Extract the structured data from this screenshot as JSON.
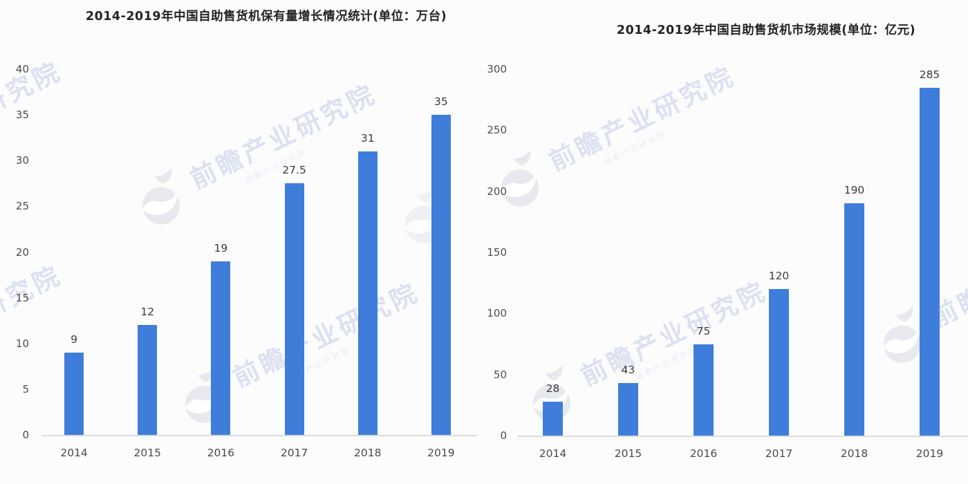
{
  "page": {
    "background": "#fcfcfd",
    "type": "infographic-two-bar-charts"
  },
  "watermark": {
    "text": "前瞻产业研究院",
    "subtext": "前瞻产业研究院",
    "text_color": "#dbe1f0",
    "logo_color": "#e7e9ee"
  },
  "chart_data": [
    {
      "type": "bar",
      "title": "2014-2019年中国自助售货机保有量增长情况统计(单位：万台)",
      "unit": "万台",
      "categories": [
        "2014",
        "2015",
        "2016",
        "2017",
        "2018",
        "2019"
      ],
      "values": [
        9,
        12,
        19,
        27.5,
        31,
        35
      ],
      "ylim": [
        0,
        40
      ],
      "yticks": [
        0,
        5,
        10,
        15,
        20,
        25,
        30,
        35,
        40
      ],
      "bar_color": "#3E7EDA",
      "grid": false,
      "legend": false,
      "data_labels": true,
      "xlabel": "",
      "ylabel": ""
    },
    {
      "type": "bar",
      "title": "2014-2019年中国自助售货机市场规模(单位：亿元)",
      "unit": "亿元",
      "categories": [
        "2014",
        "2015",
        "2016",
        "2017",
        "2018",
        "2019"
      ],
      "values": [
        28,
        43,
        75,
        120,
        190,
        285
      ],
      "ylim": [
        0,
        300
      ],
      "yticks": [
        0,
        50,
        100,
        150,
        200,
        250,
        300
      ],
      "bar_color": "#3E7EDA",
      "grid": false,
      "legend": false,
      "data_labels": true,
      "xlabel": "",
      "ylabel": ""
    }
  ]
}
